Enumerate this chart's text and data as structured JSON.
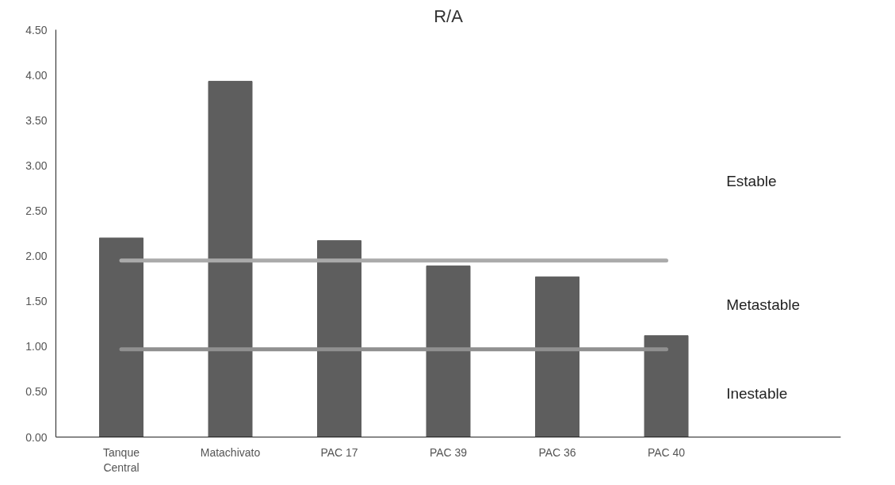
{
  "chart_data": {
    "type": "bar",
    "title": "R/A",
    "categories": [
      "Tanque Central",
      "Matachivato",
      "PAC 17",
      "PAC 39",
      "PAC 36",
      "PAC 40"
    ],
    "values": [
      2.2,
      3.93,
      2.17,
      1.89,
      1.77,
      1.12
    ],
    "color": "#5e5e5e",
    "ylim": [
      0,
      4.5
    ],
    "yticks": [
      {
        "value": 0,
        "label": "0.00"
      },
      {
        "value": 0.5,
        "label": "0.50"
      },
      {
        "value": 1,
        "label": "1.00"
      },
      {
        "value": 1.5,
        "label": "1.50"
      },
      {
        "value": 2,
        "label": "2.00"
      },
      {
        "value": 2.5,
        "label": "2.50"
      },
      {
        "value": 3,
        "label": "3.00"
      },
      {
        "value": 3.5,
        "label": "3.50"
      },
      {
        "value": 4,
        "label": "4.00"
      },
      {
        "value": 4.5,
        "label": "4.50"
      }
    ],
    "ref_lines": [
      {
        "axis": "y",
        "value": 1.95,
        "color": "#aaaaaa"
      },
      {
        "axis": "y",
        "value": 0.97,
        "color": "#909090"
      }
    ],
    "annotations": [
      "Estable",
      "Metastable",
      "Inestable"
    ],
    "grid": false
  }
}
